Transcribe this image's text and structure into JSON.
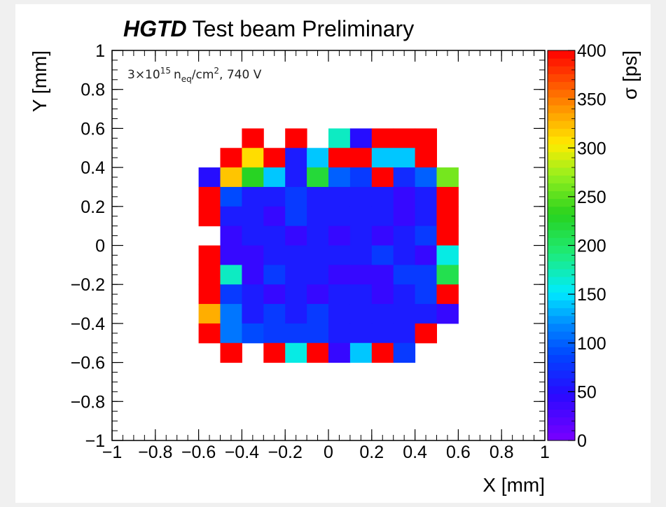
{
  "chart_data": {
    "type": "heatmap",
    "title_bold": "HGTD",
    "title_rest": "Test beam Preliminary",
    "annotation": {
      "base": "3×10",
      "exp": "15",
      "n": "n",
      "nsub": "eq",
      "unit": "/cm",
      "unitexp": "2",
      "tail": ", 740 V"
    },
    "xlabel": "X [mm]",
    "ylabel": "Y [mm]",
    "zlabel": "σ [ps]",
    "xlim": [
      -1,
      1
    ],
    "ylim": [
      -1,
      1
    ],
    "zlim": [
      0,
      400
    ],
    "x_tick_labels": [
      "−1",
      "−0.8",
      "−0.6",
      "−0.4",
      "−0.2",
      "0",
      "0.2",
      "0.4",
      "0.6",
      "0.8",
      "1"
    ],
    "y_tick_labels": [
      "−1",
      "−0.8",
      "−0.6",
      "−0.4",
      "−0.2",
      "0",
      "0.2",
      "0.4",
      "0.6",
      "0.8",
      "1"
    ],
    "z_tick_labels": [
      "0",
      "50",
      "100",
      "150",
      "200",
      "250",
      "300",
      "350",
      "400"
    ],
    "bin_width": 0.1,
    "x_bin_edges_start": -0.6,
    "y_bin_edges_start": 0.6,
    "rows_top_to_bottom": [
      [
        null,
        null,
        400,
        null,
        400,
        null,
        170,
        50,
        400,
        400,
        400,
        null
      ],
      [
        null,
        400,
        310,
        400,
        60,
        140,
        400,
        400,
        140,
        140,
        400,
        null
      ],
      [
        50,
        320,
        230,
        140,
        60,
        220,
        100,
        80,
        400,
        70,
        100,
        260
      ],
      [
        400,
        90,
        60,
        60,
        80,
        60,
        60,
        60,
        60,
        40,
        60,
        400
      ],
      [
        400,
        60,
        60,
        40,
        80,
        60,
        60,
        60,
        60,
        40,
        60,
        400
      ],
      [
        null,
        40,
        60,
        60,
        40,
        60,
        40,
        60,
        40,
        60,
        80,
        400
      ],
      [
        400,
        40,
        40,
        60,
        60,
        60,
        60,
        60,
        80,
        60,
        40,
        160
      ],
      [
        400,
        170,
        40,
        80,
        60,
        60,
        40,
        40,
        40,
        80,
        80,
        210
      ],
      [
        400,
        80,
        60,
        40,
        60,
        40,
        60,
        60,
        40,
        60,
        80,
        400
      ],
      [
        330,
        110,
        60,
        80,
        60,
        80,
        60,
        60,
        60,
        60,
        60,
        40
      ],
      [
        400,
        110,
        90,
        80,
        80,
        80,
        60,
        60,
        60,
        60,
        400,
        null
      ],
      [
        null,
        400,
        null,
        400,
        160,
        400,
        40,
        140,
        400,
        80,
        null,
        null
      ]
    ]
  }
}
